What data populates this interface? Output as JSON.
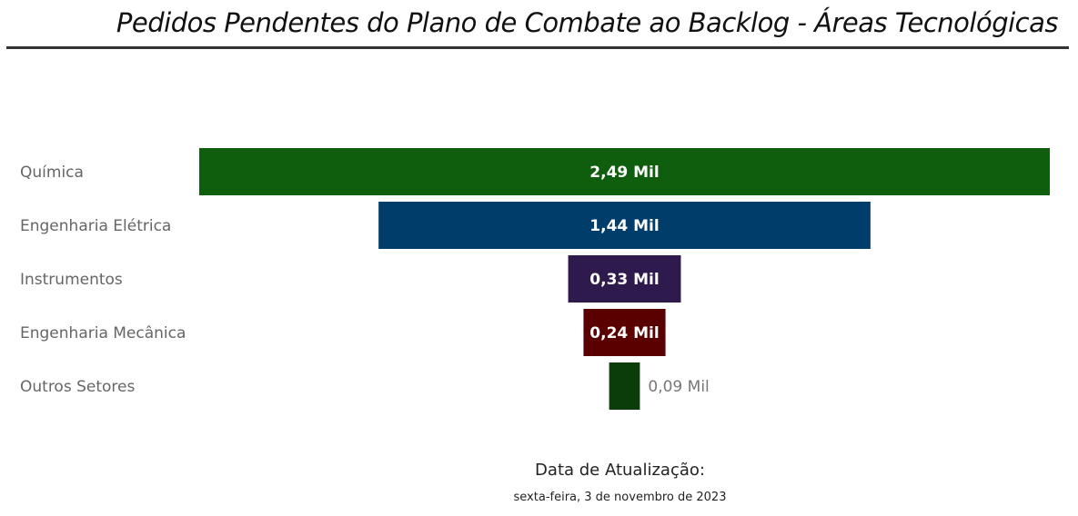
{
  "chart_data": {
    "type": "funnel",
    "title": "Pedidos Pendentes do Plano de Combate ao Backlog - Áreas Tecnológicas",
    "categories": [
      "Química",
      "Engenharia Elétrica",
      "Instrumentos",
      "Engenharia Mecânica",
      "Outros Setores"
    ],
    "values": [
      2490,
      1440,
      330,
      240,
      90
    ],
    "data_labels": [
      "2,49 Mil",
      "1,44 Mil",
      "0,33 Mil",
      "0,24 Mil",
      "0,09 Mil"
    ],
    "colors": [
      "#0E5E0E",
      "#003D6B",
      "#2E1A4C",
      "#5A0000",
      "#0B3D0B"
    ]
  },
  "footer": {
    "update_label": "Data de Atualização:",
    "update_date": "sexta-feira, 3 de novembro de 2023"
  }
}
